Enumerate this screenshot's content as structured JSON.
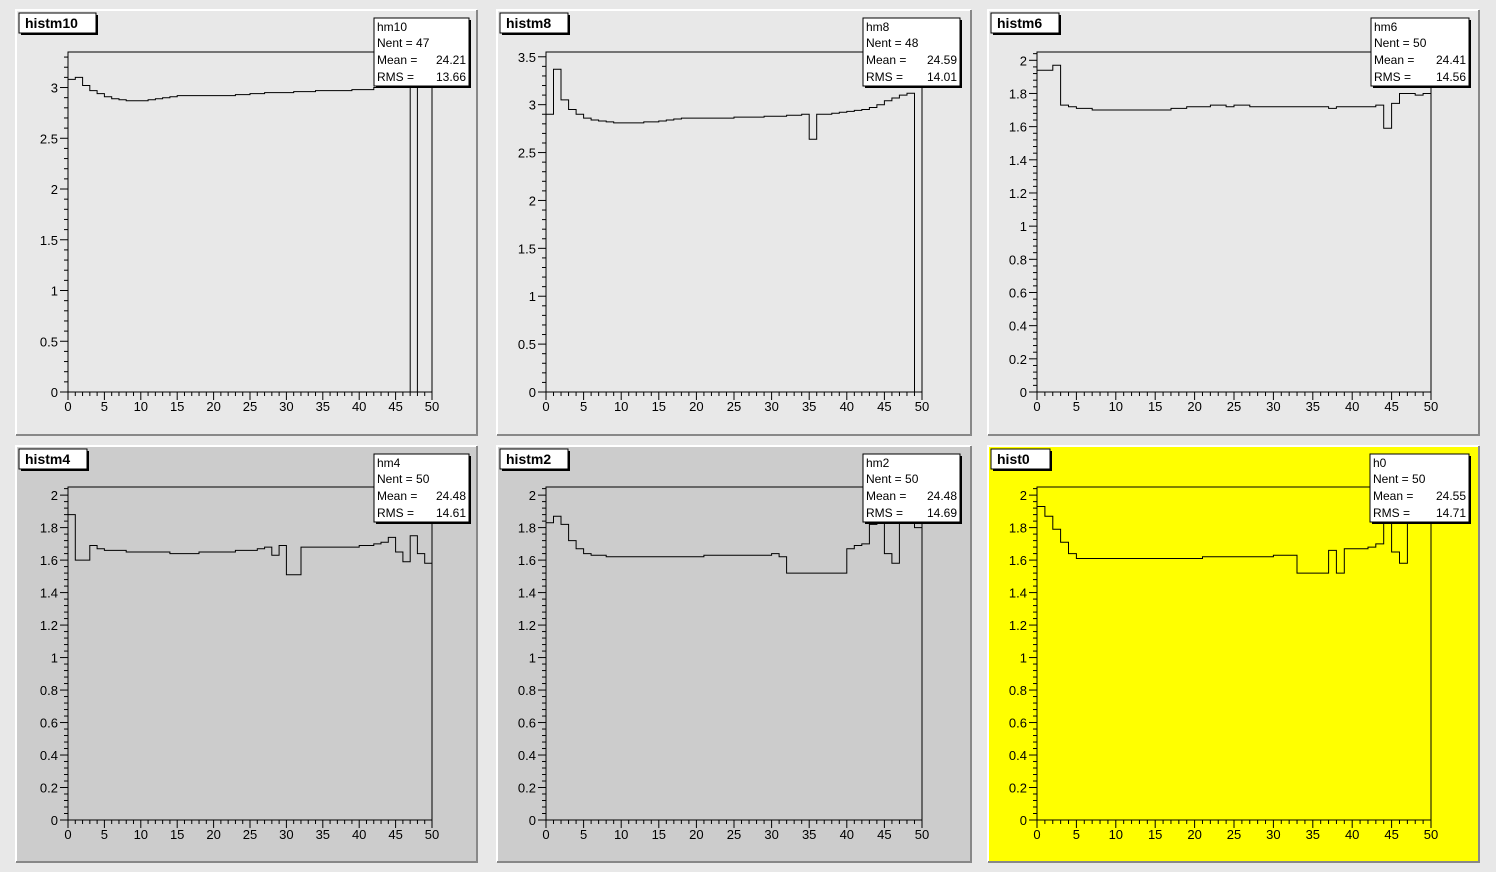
{
  "chart_data": [
    {
      "type": "histogram",
      "title": "histm10",
      "pad_color": "#e8e8e8",
      "xlim": [
        0,
        50
      ],
      "ylim": [
        0,
        3.35
      ],
      "x_ticks": [
        0,
        5,
        10,
        15,
        20,
        25,
        30,
        35,
        40,
        45,
        50
      ],
      "y_ticks": [
        0,
        0.5,
        1,
        1.5,
        2,
        2.5,
        3
      ],
      "bin_edges": [
        0,
        1,
        2,
        3,
        4,
        5,
        6,
        7,
        8,
        9,
        10,
        11,
        12,
        13,
        14,
        15,
        16,
        17,
        18,
        19,
        20,
        21,
        22,
        23,
        24,
        25,
        26,
        27,
        28,
        29,
        30,
        31,
        32,
        33,
        34,
        35,
        36,
        37,
        38,
        39,
        40,
        41,
        42,
        43,
        44,
        45,
        46,
        47,
        48,
        49,
        50
      ],
      "values": [
        3.08,
        3.1,
        3.02,
        2.97,
        2.94,
        2.91,
        2.89,
        2.88,
        2.87,
        2.87,
        2.87,
        2.88,
        2.89,
        2.9,
        2.91,
        2.92,
        2.92,
        2.92,
        2.92,
        2.92,
        2.92,
        2.92,
        2.92,
        2.93,
        2.93,
        2.94,
        2.94,
        2.95,
        2.95,
        2.95,
        2.95,
        2.96,
        2.96,
        2.96,
        2.97,
        2.97,
        2.97,
        2.97,
        2.97,
        2.98,
        2.98,
        2.98,
        3.0,
        3.02,
        3.07,
        3.15,
        3.22,
        0,
        3.3,
        3.3
      ],
      "stats": {
        "name": "hm10",
        "nent": "Nent = 47",
        "mean_label": "Mean  =",
        "mean": "24.21",
        "rms_label": "RMS   =",
        "rms": "13.66"
      }
    },
    {
      "type": "histogram",
      "title": "histm8",
      "pad_color": "#e8e8e8",
      "xlim": [
        0,
        50
      ],
      "ylim": [
        0,
        3.55
      ],
      "x_ticks": [
        0,
        5,
        10,
        15,
        20,
        25,
        30,
        35,
        40,
        45,
        50
      ],
      "y_ticks": [
        0,
        0.5,
        1,
        1.5,
        2,
        2.5,
        3,
        3.5
      ],
      "bin_edges": [
        0,
        1,
        2,
        3,
        4,
        5,
        6,
        7,
        8,
        9,
        10,
        11,
        12,
        13,
        14,
        15,
        16,
        17,
        18,
        19,
        20,
        21,
        22,
        23,
        24,
        25,
        26,
        27,
        28,
        29,
        30,
        31,
        32,
        33,
        34,
        35,
        36,
        37,
        38,
        39,
        40,
        41,
        42,
        43,
        44,
        45,
        46,
        47,
        48,
        49,
        50
      ],
      "values": [
        2.9,
        3.37,
        3.05,
        2.95,
        2.9,
        2.86,
        2.84,
        2.83,
        2.82,
        2.81,
        2.81,
        2.81,
        2.81,
        2.82,
        2.82,
        2.83,
        2.84,
        2.85,
        2.86,
        2.86,
        2.86,
        2.86,
        2.86,
        2.86,
        2.86,
        2.87,
        2.87,
        2.87,
        2.87,
        2.88,
        2.88,
        2.88,
        2.89,
        2.89,
        2.9,
        2.64,
        2.9,
        2.9,
        2.91,
        2.92,
        2.93,
        2.94,
        2.95,
        2.97,
        3.0,
        3.04,
        3.07,
        3.1,
        3.12,
        0
      ],
      "stats": {
        "name": "hm8",
        "nent": "Nent = 48",
        "mean_label": "Mean  =",
        "mean": "24.59",
        "rms_label": "RMS   =",
        "rms": "14.01"
      }
    },
    {
      "type": "histogram",
      "title": "histm6",
      "pad_color": "#e8e8e8",
      "xlim": [
        0,
        50
      ],
      "ylim": [
        0,
        2.05
      ],
      "x_ticks": [
        0,
        5,
        10,
        15,
        20,
        25,
        30,
        35,
        40,
        45,
        50
      ],
      "y_ticks": [
        0,
        0.2,
        0.4,
        0.6,
        0.8,
        1,
        1.2,
        1.4,
        1.6,
        1.8,
        2
      ],
      "bin_edges": [
        0,
        1,
        2,
        3,
        4,
        5,
        6,
        7,
        8,
        9,
        10,
        11,
        12,
        13,
        14,
        15,
        16,
        17,
        18,
        19,
        20,
        21,
        22,
        23,
        24,
        25,
        26,
        27,
        28,
        29,
        30,
        31,
        32,
        33,
        34,
        35,
        36,
        37,
        38,
        39,
        40,
        41,
        42,
        43,
        44,
        45,
        46,
        47,
        48,
        49,
        50
      ],
      "values": [
        1.94,
        1.94,
        1.97,
        1.73,
        1.72,
        1.71,
        1.71,
        1.7,
        1.7,
        1.7,
        1.7,
        1.7,
        1.7,
        1.7,
        1.7,
        1.7,
        1.7,
        1.71,
        1.71,
        1.72,
        1.72,
        1.72,
        1.73,
        1.73,
        1.72,
        1.73,
        1.73,
        1.72,
        1.72,
        1.72,
        1.72,
        1.72,
        1.72,
        1.72,
        1.72,
        1.72,
        1.72,
        1.71,
        1.72,
        1.72,
        1.72,
        1.72,
        1.72,
        1.73,
        1.59,
        1.74,
        1.8,
        1.8,
        1.79,
        1.8
      ],
      "stats": {
        "name": "hm6",
        "nent": "Nent = 50",
        "mean_label": "Mean  =",
        "mean": "24.41",
        "rms_label": "RMS   =",
        "rms": "14.56"
      }
    },
    {
      "type": "histogram",
      "title": "histm4",
      "pad_color": "#cccccc",
      "xlim": [
        0,
        50
      ],
      "ylim": [
        0,
        2.05
      ],
      "x_ticks": [
        0,
        5,
        10,
        15,
        20,
        25,
        30,
        35,
        40,
        45,
        50
      ],
      "y_ticks": [
        0,
        0.2,
        0.4,
        0.6,
        0.8,
        1,
        1.2,
        1.4,
        1.6,
        1.8,
        2
      ],
      "bin_edges": [
        0,
        1,
        2,
        3,
        4,
        5,
        6,
        7,
        8,
        9,
        10,
        11,
        12,
        13,
        14,
        15,
        16,
        17,
        18,
        19,
        20,
        21,
        22,
        23,
        24,
        25,
        26,
        27,
        28,
        29,
        30,
        31,
        32,
        33,
        34,
        35,
        36,
        37,
        38,
        39,
        40,
        41,
        42,
        43,
        44,
        45,
        46,
        47,
        48,
        49,
        50
      ],
      "values": [
        1.88,
        1.6,
        1.6,
        1.69,
        1.67,
        1.66,
        1.66,
        1.66,
        1.65,
        1.65,
        1.65,
        1.65,
        1.65,
        1.65,
        1.64,
        1.64,
        1.64,
        1.64,
        1.65,
        1.65,
        1.65,
        1.65,
        1.65,
        1.66,
        1.66,
        1.66,
        1.67,
        1.68,
        1.63,
        1.69,
        1.51,
        1.51,
        1.68,
        1.68,
        1.68,
        1.68,
        1.68,
        1.68,
        1.68,
        1.68,
        1.69,
        1.69,
        1.7,
        1.71,
        1.74,
        1.65,
        1.59,
        1.75,
        1.64,
        1.58
      ],
      "stats": {
        "name": "hm4",
        "nent": "Nent = 50",
        "mean_label": "Mean  =",
        "mean": "24.48",
        "rms_label": "RMS   =",
        "rms": "14.61"
      }
    },
    {
      "type": "histogram",
      "title": "histm2",
      "pad_color": "#cccccc",
      "xlim": [
        0,
        50
      ],
      "ylim": [
        0,
        2.05
      ],
      "x_ticks": [
        0,
        5,
        10,
        15,
        20,
        25,
        30,
        35,
        40,
        45,
        50
      ],
      "y_ticks": [
        0,
        0.2,
        0.4,
        0.6,
        0.8,
        1,
        1.2,
        1.4,
        1.6,
        1.8,
        2
      ],
      "bin_edges": [
        0,
        1,
        2,
        3,
        4,
        5,
        6,
        7,
        8,
        9,
        10,
        11,
        12,
        13,
        14,
        15,
        16,
        17,
        18,
        19,
        20,
        21,
        22,
        23,
        24,
        25,
        26,
        27,
        28,
        29,
        30,
        31,
        32,
        35,
        40,
        41,
        42,
        43,
        44,
        45,
        46,
        47,
        48,
        49,
        50
      ],
      "values": [
        1.83,
        1.87,
        1.82,
        1.72,
        1.67,
        1.64,
        1.63,
        1.63,
        1.62,
        1.62,
        1.62,
        1.62,
        1.62,
        1.62,
        1.62,
        1.62,
        1.62,
        1.62,
        1.62,
        1.62,
        1.62,
        1.63,
        1.63,
        1.63,
        1.63,
        1.63,
        1.63,
        1.63,
        1.63,
        1.63,
        1.64,
        1.62,
        1.52,
        1.52,
        1.67,
        1.69,
        1.7,
        1.82,
        1.86,
        1.64,
        1.58,
        1.92,
        1.9,
        1.8
      ],
      "stats": {
        "name": "hm2",
        "nent": "Nent = 50",
        "mean_label": "Mean  =",
        "mean": "24.48",
        "rms_label": "RMS   =",
        "rms": "14.69"
      }
    },
    {
      "type": "histogram",
      "title": "hist0",
      "pad_color": "#ffff00",
      "xlim": [
        0,
        50
      ],
      "ylim": [
        0,
        2.05
      ],
      "x_ticks": [
        0,
        5,
        10,
        15,
        20,
        25,
        30,
        35,
        40,
        45,
        50
      ],
      "y_ticks": [
        0,
        0.2,
        0.4,
        0.6,
        0.8,
        1,
        1.2,
        1.4,
        1.6,
        1.8,
        2
      ],
      "bin_edges": [
        0,
        1,
        2,
        3,
        4,
        5,
        6,
        7,
        8,
        9,
        10,
        11,
        12,
        13,
        14,
        15,
        16,
        17,
        18,
        19,
        20,
        21,
        22,
        23,
        24,
        25,
        26,
        27,
        28,
        29,
        30,
        31,
        32,
        33,
        36,
        37,
        38,
        39,
        40,
        41,
        42,
        43,
        44,
        45,
        46,
        47,
        48,
        49,
        50
      ],
      "values": [
        1.93,
        1.87,
        1.79,
        1.71,
        1.64,
        1.61,
        1.61,
        1.61,
        1.61,
        1.61,
        1.61,
        1.61,
        1.61,
        1.61,
        1.61,
        1.61,
        1.61,
        1.61,
        1.61,
        1.61,
        1.61,
        1.62,
        1.62,
        1.62,
        1.62,
        1.62,
        1.62,
        1.62,
        1.62,
        1.62,
        1.63,
        1.63,
        1.63,
        1.52,
        1.52,
        1.66,
        1.52,
        1.67,
        1.67,
        1.67,
        1.68,
        1.7,
        1.85,
        1.65,
        1.58,
        1.9,
        1.92,
        1.9
      ],
      "stats": {
        "name": "h0",
        "nent": "Nent = 50",
        "mean_label": "Mean  =",
        "mean": "24.55",
        "rms_label": "RMS   =",
        "rms": "14.71"
      }
    }
  ]
}
